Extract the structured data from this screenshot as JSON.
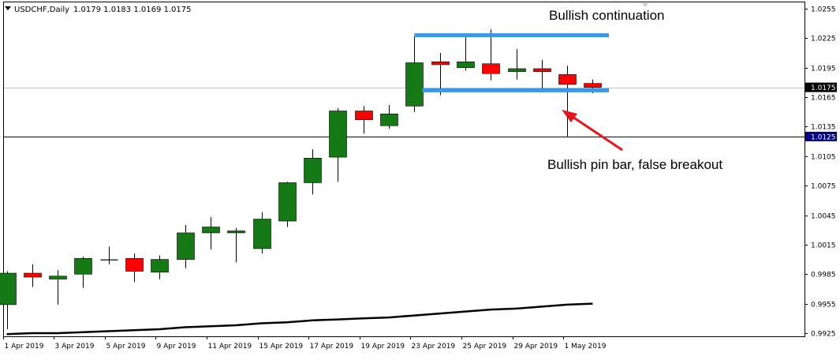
{
  "header": {
    "symbol_title": "USDCHF,Daily",
    "ohlc_text": "1.0179 1.0183 1.0169 1.0175"
  },
  "annotations": {
    "top": "Bullish continuation",
    "bottom": "Bullish pin bar, false breakout"
  },
  "price_tags": {
    "current": "1.0175",
    "level": "1.0125"
  },
  "colors": {
    "bull": "#157a15",
    "bear": "#ff0000",
    "wick": "#000000",
    "channel": "#3a97e6",
    "level_line": "#000080",
    "current_line": "#c0c0c0",
    "ma": "#000000",
    "arrow": "#e8141b"
  },
  "chart_data": {
    "type": "candlestick",
    "symbol": "USDCHF",
    "timeframe": "Daily",
    "ylim": [
      0.992,
      1.026
    ],
    "y_ticks": [
      "1.0255",
      "1.0225",
      "1.0195",
      "1.0165",
      "1.0135",
      "1.0105",
      "1.0075",
      "1.0045",
      "1.0015",
      "0.9985",
      "0.9955",
      "0.9925"
    ],
    "x_ticks": [
      "1 Apr 2019",
      "3 Apr 2019",
      "5 Apr 2019",
      "9 Apr 2019",
      "11 Apr 2019",
      "15 Apr 2019",
      "17 Apr 2019",
      "19 Apr 2019",
      "23 Apr 2019",
      "25 Apr 2019",
      "29 Apr 2019",
      "1 May 2019"
    ],
    "candles": [
      {
        "o": 0.9954,
        "h": 0.9988,
        "l": 0.9929,
        "c": 0.9986
      },
      {
        "o": 0.9986,
        "h": 0.9995,
        "l": 0.9972,
        "c": 0.9982
      },
      {
        "o": 0.998,
        "h": 0.9989,
        "l": 0.9954,
        "c": 0.9983
      },
      {
        "o": 0.9985,
        "h": 1.0003,
        "l": 0.9971,
        "c": 1.0001
      },
      {
        "o": 1.0,
        "h": 1.0013,
        "l": 0.9995,
        "c": 1.0
      },
      {
        "o": 1.0001,
        "h": 1.0006,
        "l": 0.9977,
        "c": 0.9988
      },
      {
        "o": 0.9987,
        "h": 1.0004,
        "l": 0.998,
        "c": 1.0
      },
      {
        "o": 1.0,
        "h": 1.0035,
        "l": 0.9991,
        "c": 1.0027
      },
      {
        "o": 1.0027,
        "h": 1.0043,
        "l": 1.001,
        "c": 1.0033
      },
      {
        "o": 1.0027,
        "h": 1.0032,
        "l": 0.9997,
        "c": 1.0029
      },
      {
        "o": 1.0011,
        "h": 1.0048,
        "l": 1.0006,
        "c": 1.0041
      },
      {
        "o": 1.0039,
        "h": 1.0079,
        "l": 1.0033,
        "c": 1.0078
      },
      {
        "o": 1.0078,
        "h": 1.0112,
        "l": 1.0066,
        "c": 1.0103
      },
      {
        "o": 1.0104,
        "h": 1.0154,
        "l": 1.0079,
        "c": 1.0151
      },
      {
        "o": 1.0151,
        "h": 1.0156,
        "l": 1.0128,
        "c": 1.0142
      },
      {
        "o": 1.0136,
        "h": 1.0157,
        "l": 1.0133,
        "c": 1.0148
      },
      {
        "o": 1.0156,
        "h": 1.0227,
        "l": 1.015,
        "c": 1.02
      },
      {
        "o": 1.0201,
        "h": 1.021,
        "l": 1.0167,
        "c": 1.0198
      },
      {
        "o": 1.0195,
        "h": 1.0226,
        "l": 1.0192,
        "c": 1.0201
      },
      {
        "o": 1.0199,
        "h": 1.0234,
        "l": 1.0182,
        "c": 1.0189
      },
      {
        "o": 1.0191,
        "h": 1.0214,
        "l": 1.0183,
        "c": 1.0194
      },
      {
        "o": 1.0194,
        "h": 1.0203,
        "l": 1.0171,
        "c": 1.0191
      },
      {
        "o": 1.0188,
        "h": 1.0197,
        "l": 1.0125,
        "c": 1.0178
      },
      {
        "o": 1.0179,
        "h": 1.0183,
        "l": 1.0169,
        "c": 1.0175
      }
    ],
    "moving_average": [
      0.9924,
      0.9925,
      0.9925,
      0.9926,
      0.9927,
      0.9928,
      0.9929,
      0.9931,
      0.9932,
      0.9933,
      0.9935,
      0.9936,
      0.9938,
      0.9939,
      0.994,
      0.9941,
      0.9943,
      0.9945,
      0.9947,
      0.9949,
      0.995,
      0.9952,
      0.9954,
      0.9955
    ],
    "horizontal_lines": {
      "current_price": 1.0175,
      "support_level": 1.0125,
      "channel_top": 1.0228,
      "channel_bottom": 1.0172
    },
    "channel_start_candle": 16,
    "pin_bar_candle": 22
  }
}
